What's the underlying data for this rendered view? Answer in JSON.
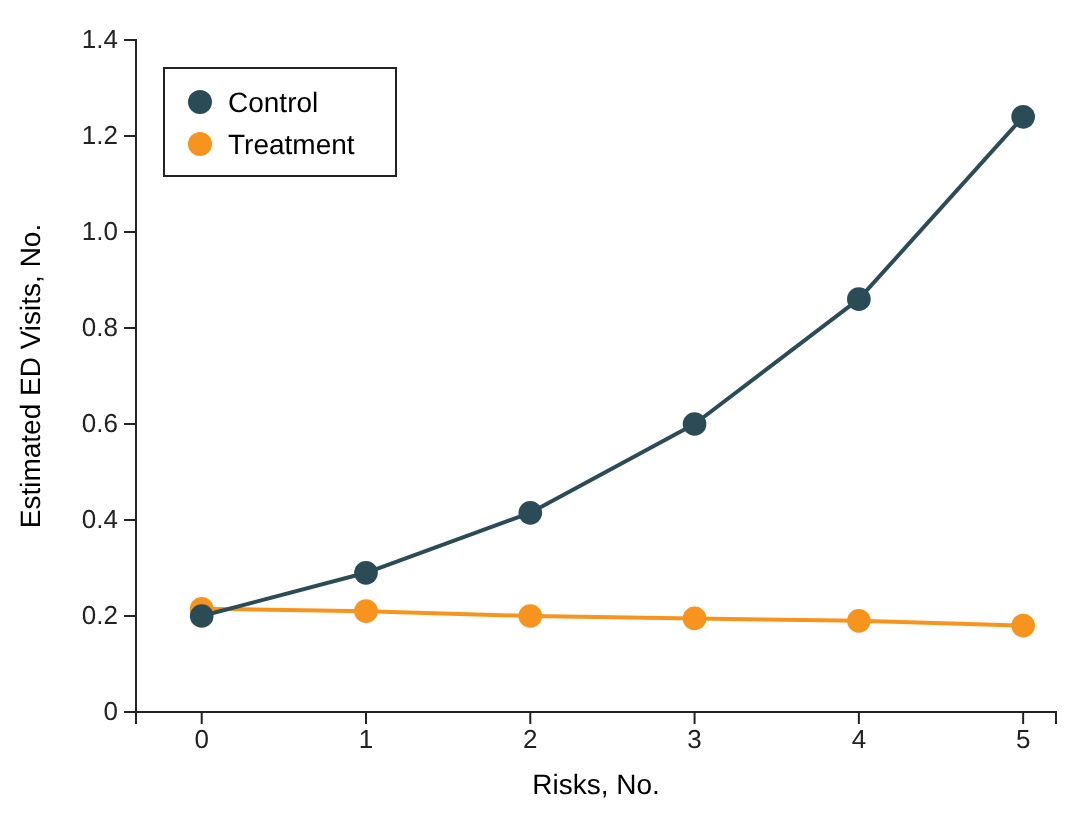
{
  "chart_data": {
    "type": "line",
    "xlabel": "Risks, No.",
    "ylabel": "Estimated ED Visits, No.",
    "x": [
      0,
      1,
      2,
      3,
      4,
      5
    ],
    "series": [
      {
        "name": "Control",
        "color": "#2b4c57",
        "values": [
          0.2,
          0.29,
          0.415,
          0.6,
          0.86,
          1.24
        ]
      },
      {
        "name": "Treatment",
        "color": "#f7941d",
        "values": [
          0.215,
          0.21,
          0.2,
          0.195,
          0.19,
          0.18
        ]
      }
    ],
    "xlim": [
      -0.4,
      5.2
    ],
    "xticks": [
      0,
      1,
      2,
      3,
      4,
      5
    ],
    "ylim": [
      0,
      1.4
    ],
    "yticks": [
      0,
      {
        "value": 0.2,
        "label": "0.2"
      },
      {
        "value": 0.4,
        "label": "0.4"
      },
      {
        "value": 0.6,
        "label": "0.6"
      },
      {
        "value": 0.8,
        "label": "0.8"
      },
      {
        "value": 1.0,
        "label": "1.0"
      },
      {
        "value": 1.2,
        "label": "1.2"
      },
      {
        "value": 1.4,
        "label": "1.4"
      }
    ],
    "legend": "top left",
    "marker": "circle",
    "line_style": "solid",
    "grid": false
  }
}
